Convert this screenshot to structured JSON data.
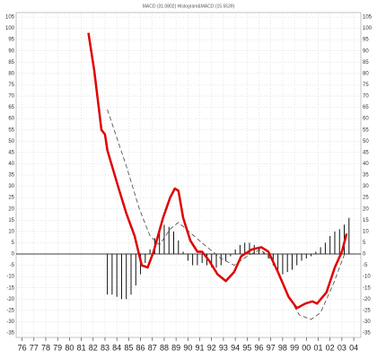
{
  "chart_data": {
    "type": "line",
    "title": "MACD (31.0802) Histogram&MACD (15.5539)",
    "xlim": [
      1975.5,
      2004.6
    ],
    "ylim": [
      -37,
      107
    ],
    "xticks": [
      {
        "value": 1976,
        "label": "76"
      },
      {
        "value": 1977,
        "label": "77"
      },
      {
        "value": 1978,
        "label": "78"
      },
      {
        "value": 1979,
        "label": "79"
      },
      {
        "value": 1980,
        "label": "80"
      },
      {
        "value": 1981,
        "label": "81"
      },
      {
        "value": 1982,
        "label": "82"
      },
      {
        "value": 1983,
        "label": "83"
      },
      {
        "value": 1984,
        "label": "84"
      },
      {
        "value": 1985,
        "label": "85"
      },
      {
        "value": 1986,
        "label": "86"
      },
      {
        "value": 1987,
        "label": "87"
      },
      {
        "value": 1988,
        "label": "88"
      },
      {
        "value": 1989,
        "label": "89"
      },
      {
        "value": 1990,
        "label": "90"
      },
      {
        "value": 1991,
        "label": "91"
      },
      {
        "value": 1992,
        "label": "92"
      },
      {
        "value": 1993,
        "label": "93"
      },
      {
        "value": 1994,
        "label": "94"
      },
      {
        "value": 1995,
        "label": "95"
      },
      {
        "value": 1996,
        "label": "96"
      },
      {
        "value": 1997,
        "label": "97"
      },
      {
        "value": 1998,
        "label": "98"
      },
      {
        "value": 1999,
        "label": "99"
      },
      {
        "value": 2000,
        "label": "00"
      },
      {
        "value": 2001,
        "label": "01"
      },
      {
        "value": 2002,
        "label": "02"
      },
      {
        "value": 2003,
        "label": "03"
      },
      {
        "value": 2004,
        "label": "04"
      }
    ],
    "yticks": [
      105,
      100,
      95,
      90,
      85,
      80,
      75,
      70,
      65,
      60,
      55,
      50,
      45,
      40,
      35,
      30,
      25,
      20,
      15,
      10,
      5,
      0,
      -5,
      -10,
      -15,
      -20,
      -25,
      -30,
      -35
    ],
    "grid": true,
    "macd": {
      "color": "#e00000",
      "x": [
        1981.6,
        1982.1,
        1982.7,
        1983.0,
        1983.2,
        1984.1,
        1984.8,
        1985.5,
        1986.1,
        1986.6,
        1987.1,
        1987.9,
        1988.5,
        1988.9,
        1989.2,
        1989.6,
        1990.2,
        1990.8,
        1991.2,
        1991.8,
        1992.5,
        1993.2,
        1993.9,
        1994.5,
        1995.4,
        1996.2,
        1996.8,
        1997.6,
        1998.5,
        1999.2,
        1999.9,
        2000.5,
        2000.9,
        2001.7,
        2002.4,
        2003.0,
        2003.4
      ],
      "values": [
        98,
        81,
        55,
        53,
        46,
        30,
        18,
        8,
        -5,
        -6,
        1,
        16,
        25,
        29,
        28,
        16,
        6,
        1,
        1,
        -3,
        -9,
        -12,
        -8,
        -1,
        2,
        3,
        1,
        -8,
        -19,
        -24,
        -22,
        -21,
        -22,
        -17,
        -6,
        1,
        9
      ]
    },
    "signal": {
      "color": "#444444",
      "x": [
        1983.2,
        1984.8,
        1985.9,
        1986.8,
        1987.6,
        1988.5,
        1989.2,
        1990.3,
        1991.4,
        1992.8,
        1993.9,
        1995.0,
        1996.1,
        1997.2,
        1998.3,
        1999.4,
        2000.4,
        2001.2,
        2002.3,
        2003.3
      ],
      "values": [
        64,
        39,
        20,
        8,
        4,
        11,
        14,
        9,
        4,
        -2,
        -5,
        -1,
        2,
        -3,
        -17,
        -27,
        -29,
        -26,
        -13,
        1
      ]
    },
    "histogram": {
      "color": "#111111",
      "x": [
        1983.2,
        1983.6,
        1984.0,
        1984.4,
        1984.8,
        1985.2,
        1985.6,
        1986.0,
        1986.4,
        1986.8,
        1987.2,
        1987.6,
        1988.0,
        1988.4,
        1988.8,
        1989.2,
        1989.6,
        1990.0,
        1990.4,
        1990.8,
        1991.2,
        1991.6,
        1992.0,
        1992.4,
        1992.8,
        1993.2,
        1993.6,
        1994.0,
        1994.4,
        1994.8,
        1995.2,
        1995.6,
        1996.0,
        1996.4,
        1996.8,
        1997.2,
        1997.6,
        1998.0,
        1998.4,
        1998.8,
        1999.2,
        1999.6,
        2000.0,
        2000.4,
        2000.8,
        2001.2,
        2001.6,
        2002.0,
        2002.4,
        2002.8,
        2003.2,
        2003.6
      ],
      "values": [
        -18,
        -18,
        -19,
        -20,
        -20,
        -18,
        -14,
        -9,
        -4,
        2,
        7,
        11,
        13,
        12,
        10,
        6,
        1,
        -3,
        -5,
        -5,
        -4,
        -5,
        -6,
        -6,
        -5,
        -3,
        -1,
        2,
        4,
        5,
        5,
        4,
        3,
        1,
        -2,
        -5,
        -8,
        -9,
        -8,
        -7,
        -5,
        -3,
        -2,
        -1,
        1,
        3,
        5,
        8,
        10,
        11,
        13,
        16
      ]
    }
  }
}
